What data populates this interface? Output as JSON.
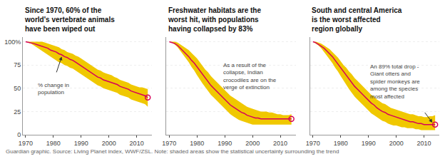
{
  "chart_data": [
    {
      "type": "line",
      "title": "Since 1970, 60% of the\nworld's vertebrate animals\nhave been wiped out",
      "x": [
        1970,
        1971,
        1972,
        1973,
        1974,
        1975,
        1976,
        1977,
        1978,
        1979,
        1980,
        1981,
        1982,
        1983,
        1984,
        1985,
        1986,
        1987,
        1988,
        1989,
        1990,
        1991,
        1992,
        1993,
        1994,
        1995,
        1996,
        1997,
        1998,
        1999,
        2000,
        2001,
        2002,
        2003,
        2004,
        2005,
        2006,
        2007,
        2008,
        2009,
        2010,
        2011,
        2012,
        2013,
        2014
      ],
      "series": [
        {
          "type": "band",
          "color": "#f0c800",
          "upper": [
            100,
            100,
            100,
            100,
            100,
            100,
            100,
            99,
            98,
            97,
            96,
            95,
            94,
            92,
            91,
            89,
            88,
            87,
            85,
            84,
            82,
            80,
            78,
            76,
            74,
            72,
            70,
            69,
            67,
            66,
            65,
            64,
            62,
            61,
            59,
            58,
            57,
            56,
            54,
            53,
            52,
            51,
            51,
            50,
            49
          ],
          "lower": [
            100,
            99,
            98,
            96,
            94,
            92,
            90,
            88,
            86,
            84,
            82,
            80,
            78,
            77,
            75,
            74,
            72,
            71,
            69,
            67,
            65,
            63,
            61,
            59,
            57,
            55,
            53,
            52,
            50,
            49,
            48,
            47,
            46,
            45,
            43,
            42,
            41,
            40,
            38,
            37,
            36,
            35,
            34,
            33,
            30
          ]
        },
        {
          "type": "line",
          "color": "#d6005a",
          "values": [
            100,
            99.5,
            99,
            98,
            97,
            96,
            95,
            94,
            93,
            91,
            90,
            89,
            87,
            86,
            84,
            83,
            81,
            80,
            78,
            76,
            74,
            72,
            70,
            68,
            66,
            64,
            62,
            61,
            59,
            58,
            57,
            56,
            55,
            54,
            52,
            51,
            50,
            49,
            47,
            46,
            45,
            44,
            43,
            42,
            40
          ]
        },
        {
          "type": "scatter",
          "color": "#d6005a",
          "marker": "circle-open",
          "x": [
            2014
          ],
          "values": [
            40
          ]
        }
      ],
      "annotations": [
        {
          "text": "% change in\npopulation",
          "x": 1974,
          "y": 58,
          "arrow_from": [
            1981,
            66
          ],
          "arrow_to": [
            1983,
            84
          ]
        }
      ],
      "xlim": [
        1969,
        2015.5
      ],
      "xticks": [
        1970,
        1980,
        1990,
        2000,
        2010
      ],
      "ylim": [
        0,
        105
      ],
      "yticks": [
        0,
        25,
        50,
        75,
        {
          "value": 100,
          "label": "100%"
        }
      ],
      "grid": true
    },
    {
      "type": "line",
      "title": "Freshwater habitats are the\nworst hit, with populations\nhaving collapsed by 83%",
      "x": [
        1970,
        1971,
        1972,
        1973,
        1974,
        1975,
        1976,
        1977,
        1978,
        1979,
        1980,
        1981,
        1982,
        1983,
        1984,
        1985,
        1986,
        1987,
        1988,
        1989,
        1990,
        1991,
        1992,
        1993,
        1994,
        1995,
        1996,
        1997,
        1998,
        1999,
        2000,
        2001,
        2002,
        2003,
        2004,
        2005,
        2006,
        2007,
        2008,
        2009,
        2010,
        2011,
        2012,
        2013,
        2014
      ],
      "series": [
        {
          "type": "band",
          "color": "#f0c800",
          "upper": [
            100,
            100,
            100,
            99,
            97,
            95,
            93,
            91,
            88,
            85,
            82,
            78,
            74,
            70,
            67,
            63,
            60,
            57,
            54,
            51,
            48,
            45,
            42,
            40,
            38,
            36,
            34,
            32,
            30,
            29,
            28,
            27,
            26,
            25,
            25,
            25,
            24,
            24,
            23,
            22,
            22,
            21,
            21,
            21,
            22
          ],
          "lower": [
            100,
            99,
            97,
            94,
            90,
            86,
            82,
            78,
            73,
            69,
            64,
            59,
            55,
            51,
            47,
            43,
            40,
            37,
            34,
            31,
            28,
            25,
            22,
            20,
            18,
            16,
            15,
            14,
            13,
            12,
            11,
            11,
            11,
            11,
            11,
            11,
            11,
            11,
            11,
            11,
            11,
            11,
            11,
            11,
            11
          ]
        },
        {
          "type": "line",
          "color": "#d6005a",
          "values": [
            100,
            99,
            98,
            96,
            93,
            90,
            87,
            84,
            80,
            77,
            73,
            69,
            65,
            61,
            57,
            53,
            50,
            47,
            44,
            41,
            38,
            35,
            32,
            30,
            28,
            26,
            24,
            23,
            21,
            20,
            19,
            18,
            18,
            17,
            17,
            17,
            17,
            17,
            17,
            17,
            17,
            17,
            17,
            17,
            17
          ]
        },
        {
          "type": "scatter",
          "color": "#d6005a",
          "marker": "circle-open",
          "x": [
            2014
          ],
          "values": [
            17
          ]
        }
      ],
      "annotations": [
        {
          "text": "As a result of the\ncollapse, Indian\ncrocodiles are on the\nverge of extinction",
          "x": 1989,
          "y": 80
        }
      ],
      "xlim": [
        1969,
        2015.5
      ],
      "xticks": [
        1970,
        1980,
        1990,
        2000,
        2010
      ],
      "ylim": [
        0,
        105
      ],
      "yticks": [
        0,
        25,
        50,
        75,
        100
      ],
      "grid": true,
      "tick_labels": "x"
    },
    {
      "type": "line",
      "title": "South and central America\nis the worst affected\nregion globally",
      "x": [
        1970,
        1971,
        1972,
        1973,
        1974,
        1975,
        1976,
        1977,
        1978,
        1979,
        1980,
        1981,
        1982,
        1983,
        1984,
        1985,
        1986,
        1987,
        1988,
        1989,
        1990,
        1991,
        1992,
        1993,
        1994,
        1995,
        1996,
        1997,
        1998,
        1999,
        2000,
        2001,
        2002,
        2003,
        2004,
        2005,
        2006,
        2007,
        2008,
        2009,
        2010,
        2011,
        2012,
        2013,
        2014
      ],
      "series": [
        {
          "type": "band",
          "color": "#f0c800",
          "upper": [
            100,
            100,
            99,
            98,
            96,
            94,
            92,
            89,
            86,
            83,
            79,
            75,
            72,
            68,
            65,
            61,
            58,
            55,
            52,
            49,
            46,
            43,
            41,
            38,
            36,
            34,
            33,
            31,
            29,
            28,
            27,
            26,
            25,
            24,
            23,
            22,
            22,
            21,
            20,
            20,
            19,
            19,
            20,
            20,
            21
          ],
          "lower": [
            100,
            98,
            96,
            93,
            89,
            85,
            81,
            77,
            72,
            68,
            63,
            58,
            54,
            49,
            45,
            41,
            38,
            35,
            32,
            29,
            26,
            23,
            21,
            19,
            17,
            15,
            14,
            12,
            11,
            10,
            10,
            9,
            8,
            8,
            7,
            7,
            7,
            6,
            6,
            5,
            5,
            5,
            5,
            5,
            5
          ]
        },
        {
          "type": "line",
          "color": "#d6005a",
          "values": [
            100,
            99,
            97,
            95,
            93,
            90,
            87,
            84,
            80,
            76,
            72,
            68,
            64,
            60,
            56,
            52,
            49,
            46,
            43,
            40,
            37,
            34,
            32,
            29,
            27,
            25,
            24,
            22,
            21,
            20,
            19,
            18,
            17,
            16,
            15,
            14,
            14,
            13,
            12,
            12,
            11,
            11,
            11,
            11,
            11
          ]
        },
        {
          "type": "scatter",
          "color": "#d6005a",
          "marker": "circle-open",
          "x": [
            2014
          ],
          "values": [
            11
          ]
        }
      ],
      "annotations": [
        {
          "text": "An 89% total drop -\nGiant otters and\nspider monkeys are\namong the species\nmost affected",
          "x": 1990,
          "y": 78,
          "arrow_from": [
            2010,
            25
          ],
          "arrow_to": [
            2013,
            13
          ]
        }
      ],
      "xlim": [
        1969,
        2015.5
      ],
      "xticks": [
        1970,
        1980,
        1990,
        2000,
        2010
      ],
      "ylim": [
        0,
        105
      ],
      "yticks": [
        0,
        25,
        50,
        75,
        100
      ],
      "grid": true,
      "tick_labels": "x"
    }
  ],
  "footer": "Guardian graphic. Source: Living Planet index, WWF/ZSL. Note: shaded areas show the statistical uncertainty surrounding the trend"
}
